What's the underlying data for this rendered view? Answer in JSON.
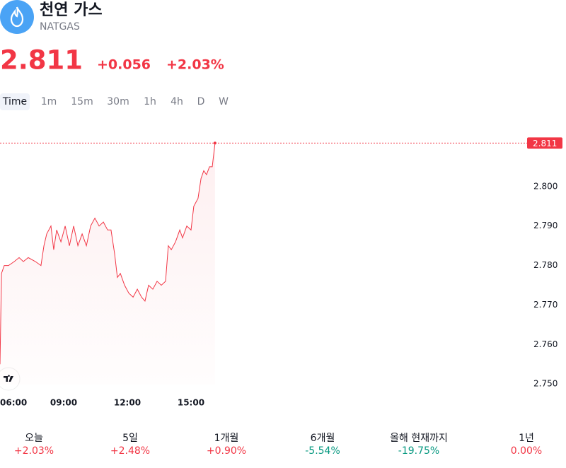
{
  "header": {
    "title": "천연 가스",
    "symbol": "NATGAS",
    "price": "2.811",
    "change": "+0.056",
    "change_pct": "+2.03%"
  },
  "tabs": [
    "Time",
    "1m",
    "15m",
    "30m",
    "1h",
    "4h",
    "D",
    "W"
  ],
  "chart_data": {
    "type": "line",
    "x": [
      6,
      6.07,
      6.2,
      6.4,
      6.67,
      6.9,
      7.1,
      7.33,
      7.67,
      7.93,
      8.07,
      8.2,
      8.4,
      8.53,
      8.67,
      8.87,
      9.07,
      9.27,
      9.47,
      9.67,
      9.87,
      10.07,
      10.27,
      10.47,
      10.67,
      10.87,
      11.07,
      11.23,
      11.4,
      11.53,
      11.67,
      11.87,
      12.07,
      12.27,
      12.47,
      12.67,
      12.83,
      13,
      13.2,
      13.4,
      13.6,
      13.8,
      13.93,
      14.07,
      14.27,
      14.47,
      14.6,
      14.8,
      15,
      15.13,
      15.33,
      15.47,
      15.6,
      15.73,
      15.87,
      16,
      16.13
    ],
    "series": [
      {
        "color": "#f23645",
        "values": [
          2.755,
          2.778,
          2.78,
          2.78,
          2.781,
          2.782,
          2.781,
          2.782,
          2.781,
          2.78,
          2.785,
          2.788,
          2.79,
          2.784,
          2.789,
          2.786,
          2.79,
          2.785,
          2.79,
          2.785,
          2.788,
          2.785,
          2.79,
          2.792,
          2.79,
          2.791,
          2.789,
          2.789,
          2.783,
          2.777,
          2.778,
          2.775,
          2.773,
          2.772,
          2.774,
          2.772,
          2.771,
          2.775,
          2.774,
          2.776,
          2.775,
          2.776,
          2.785,
          2.784,
          2.786,
          2.789,
          2.787,
          2.79,
          2.789,
          2.795,
          2.797,
          2.802,
          2.804,
          2.803,
          2.805,
          2.805,
          2.811
        ]
      }
    ],
    "xlim": [
      6,
      30.67
    ],
    "xticks": [
      {
        "value": 6,
        "label": "06:00"
      },
      {
        "value": 9,
        "label": "09:00"
      },
      {
        "value": 12,
        "label": "12:00"
      },
      {
        "value": 15,
        "label": "15:00"
      }
    ],
    "ylim": [
      2.747,
      2.815
    ],
    "yticks": [
      {
        "value": 2.75,
        "label": "2.750"
      },
      {
        "value": 2.76,
        "label": "2.760"
      },
      {
        "value": 2.77,
        "label": "2.770"
      },
      {
        "value": 2.78,
        "label": "2.780"
      },
      {
        "value": 2.79,
        "label": "2.790"
      },
      {
        "value": 2.8,
        "label": "2.800"
      }
    ]
  },
  "performance": [
    {
      "label": "오늘",
      "value": "+2.03%"
    },
    {
      "label": "5일",
      "value": "+2.48%"
    },
    {
      "label": "1개월",
      "value": "+0.90%"
    },
    {
      "label": "6개월",
      "value": "-5.54%"
    },
    {
      "label": "올해 현재까지",
      "value": "-19.75%"
    },
    {
      "label": "1년",
      "value": "0.00%"
    }
  ]
}
